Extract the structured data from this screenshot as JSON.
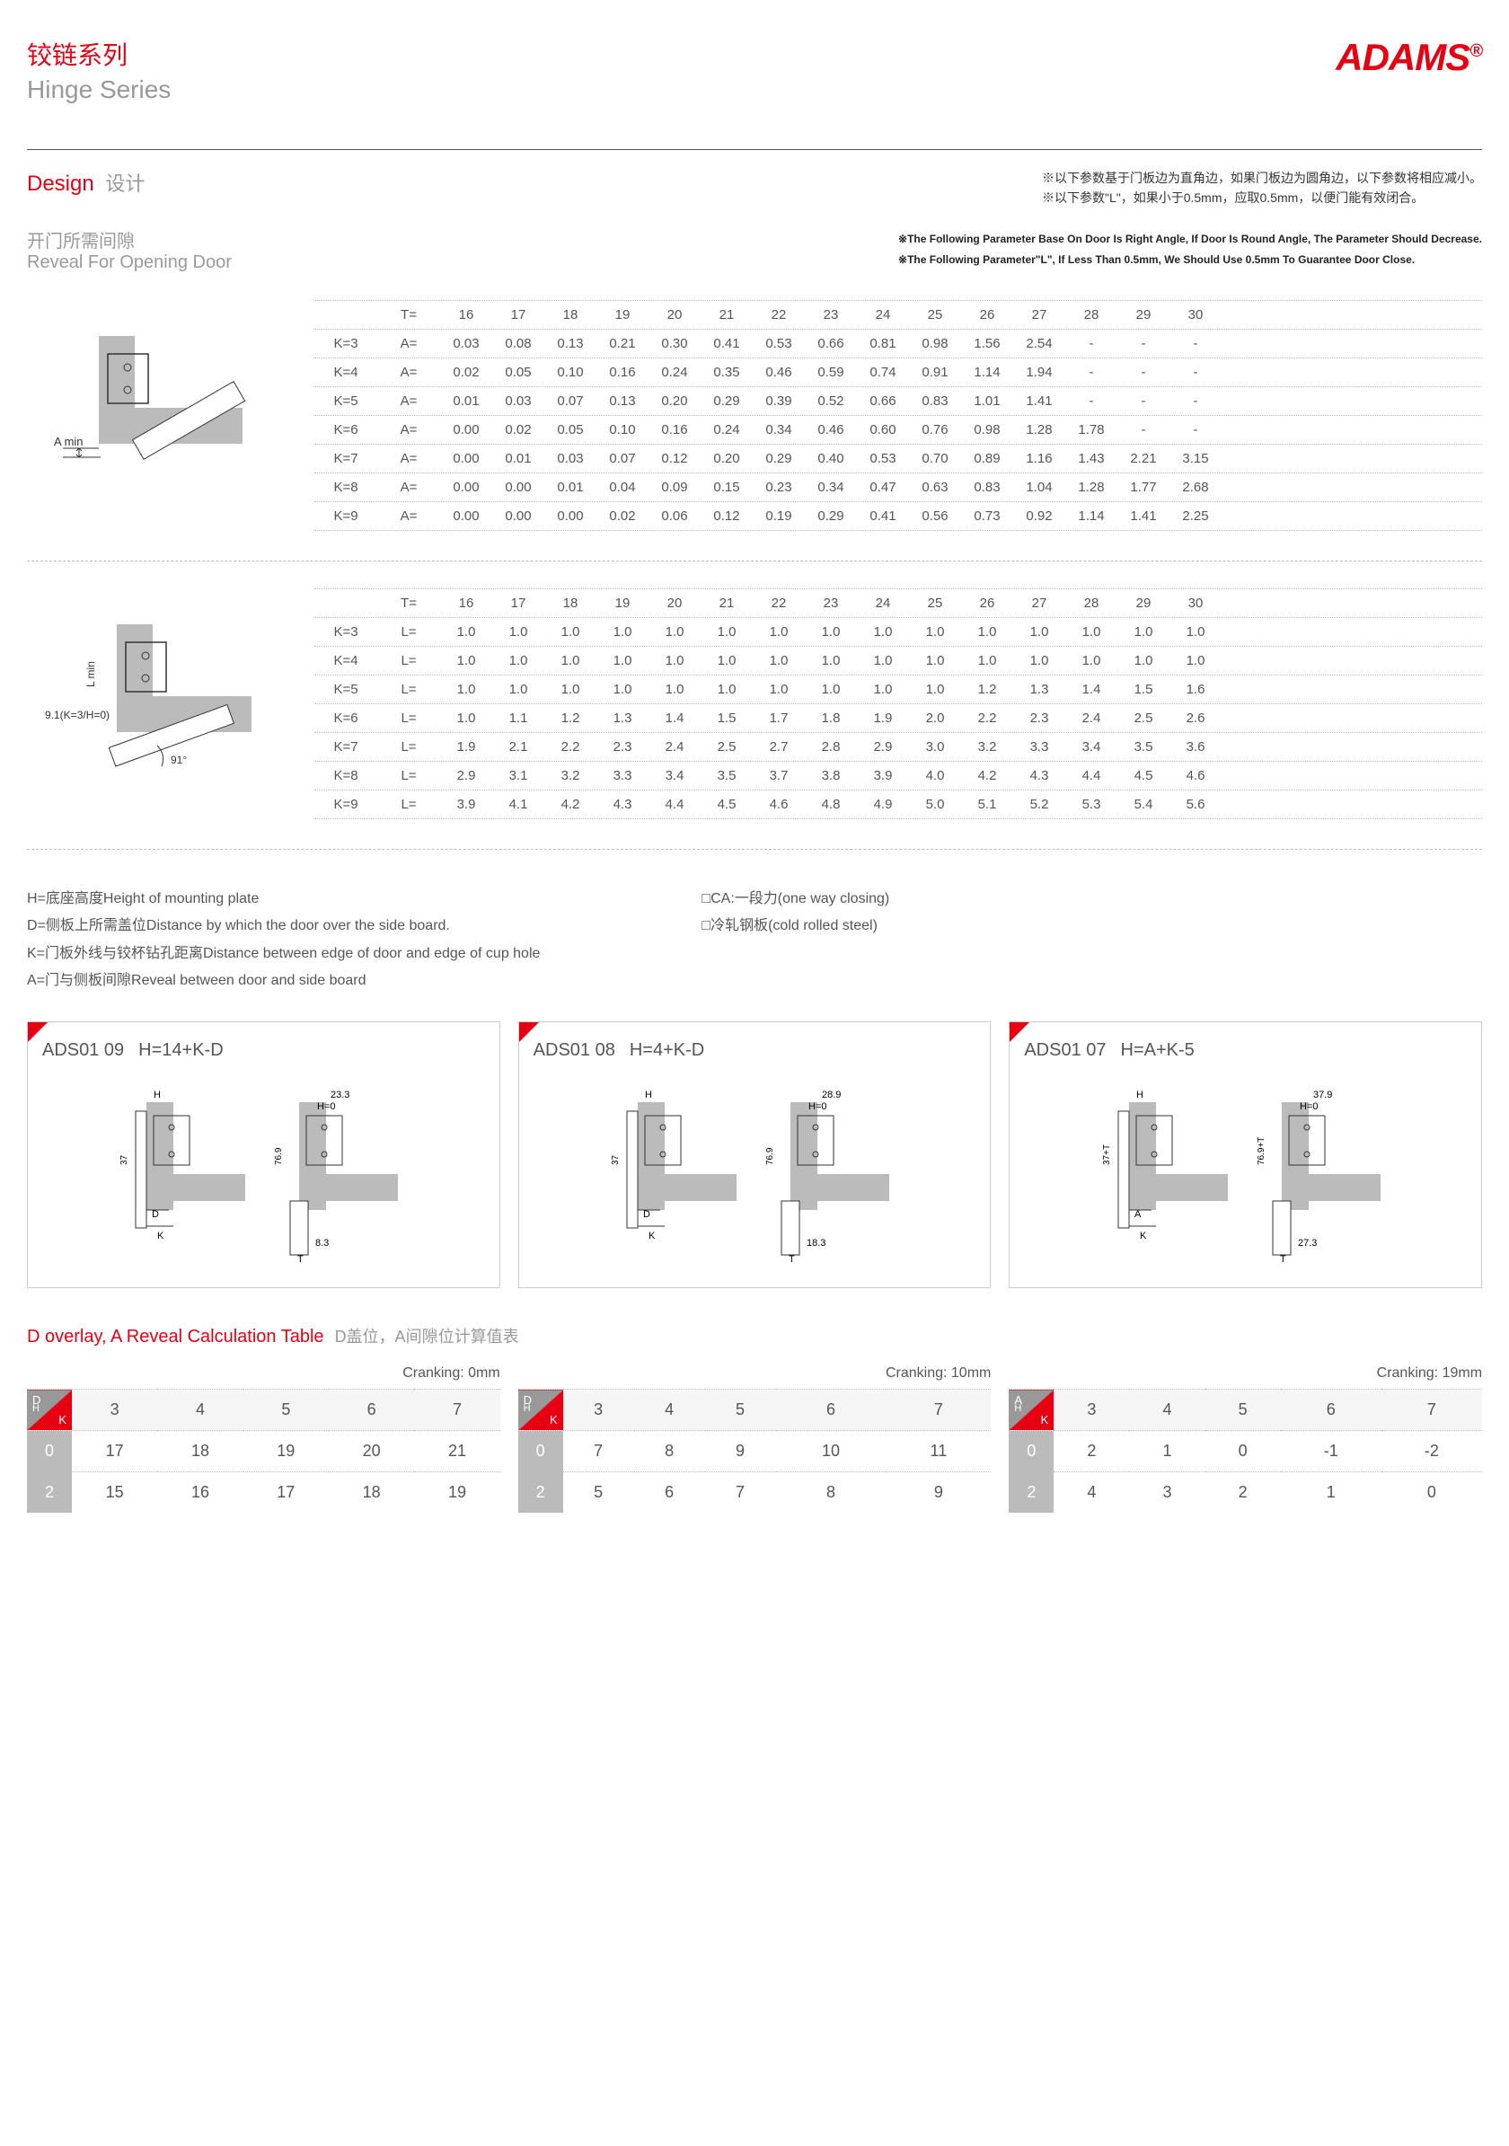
{
  "header": {
    "title_cn": "铰链系列",
    "title_en": "Hinge Series",
    "brand": "ADAMS"
  },
  "design": {
    "label_en": "Design",
    "label_cn": "设计",
    "note_cn1": "※以下参数基于门板边为直角边，如果门板边为圆角边，以下参数将相应减小。",
    "note_cn2": "※以下参数\"L\"，如果小于0.5mm，应取0.5mm，以便门能有效闭合。",
    "note_en1": "※The Following Parameter Base On Door Is Right Angle, If Door Is Round Angle, The Parameter Should Decrease.",
    "note_en2": "※The Following Parameter\"L\", If Less Than 0.5mm, We Should Use 0.5mm To Guarantee Door Close."
  },
  "subtitle": {
    "cn": "开门所需间隙",
    "en": "Reveal For Opening Door"
  },
  "diagram1": {
    "label": "A min"
  },
  "diagram2": {
    "label1": "L min",
    "label2": "9.1(K=3/H=0)",
    "label3": "91°"
  },
  "tcols": [
    "16",
    "17",
    "18",
    "19",
    "20",
    "21",
    "22",
    "23",
    "24",
    "25",
    "26",
    "27",
    "28",
    "29",
    "30"
  ],
  "tableA": {
    "T": "T=",
    "Acol": "A=",
    "rows": [
      {
        "k": "K=3",
        "v": [
          "0.03",
          "0.08",
          "0.13",
          "0.21",
          "0.30",
          "0.41",
          "0.53",
          "0.66",
          "0.81",
          "0.98",
          "1.56",
          "2.54",
          "-",
          "-",
          "-"
        ]
      },
      {
        "k": "K=4",
        "v": [
          "0.02",
          "0.05",
          "0.10",
          "0.16",
          "0.24",
          "0.35",
          "0.46",
          "0.59",
          "0.74",
          "0.91",
          "1.14",
          "1.94",
          "-",
          "-",
          "-"
        ]
      },
      {
        "k": "K=5",
        "v": [
          "0.01",
          "0.03",
          "0.07",
          "0.13",
          "0.20",
          "0.29",
          "0.39",
          "0.52",
          "0.66",
          "0.83",
          "1.01",
          "1.41",
          "-",
          "-",
          "-"
        ]
      },
      {
        "k": "K=6",
        "v": [
          "0.00",
          "0.02",
          "0.05",
          "0.10",
          "0.16",
          "0.24",
          "0.34",
          "0.46",
          "0.60",
          "0.76",
          "0.98",
          "1.28",
          "1.78",
          "-",
          "-"
        ]
      },
      {
        "k": "K=7",
        "v": [
          "0.00",
          "0.01",
          "0.03",
          "0.07",
          "0.12",
          "0.20",
          "0.29",
          "0.40",
          "0.53",
          "0.70",
          "0.89",
          "1.16",
          "1.43",
          "2.21",
          "3.15"
        ]
      },
      {
        "k": "K=8",
        "v": [
          "0.00",
          "0.00",
          "0.01",
          "0.04",
          "0.09",
          "0.15",
          "0.23",
          "0.34",
          "0.47",
          "0.63",
          "0.83",
          "1.04",
          "1.28",
          "1.77",
          "2.68"
        ]
      },
      {
        "k": "K=9",
        "v": [
          "0.00",
          "0.00",
          "0.00",
          "0.02",
          "0.06",
          "0.12",
          "0.19",
          "0.29",
          "0.41",
          "0.56",
          "0.73",
          "0.92",
          "1.14",
          "1.41",
          "2.25"
        ]
      }
    ]
  },
  "tableL": {
    "T": "T=",
    "Lcol": "L=",
    "rows": [
      {
        "k": "K=3",
        "v": [
          "1.0",
          "1.0",
          "1.0",
          "1.0",
          "1.0",
          "1.0",
          "1.0",
          "1.0",
          "1.0",
          "1.0",
          "1.0",
          "1.0",
          "1.0",
          "1.0",
          "1.0"
        ]
      },
      {
        "k": "K=4",
        "v": [
          "1.0",
          "1.0",
          "1.0",
          "1.0",
          "1.0",
          "1.0",
          "1.0",
          "1.0",
          "1.0",
          "1.0",
          "1.0",
          "1.0",
          "1.0",
          "1.0",
          "1.0"
        ]
      },
      {
        "k": "K=5",
        "v": [
          "1.0",
          "1.0",
          "1.0",
          "1.0",
          "1.0",
          "1.0",
          "1.0",
          "1.0",
          "1.0",
          "1.0",
          "1.2",
          "1.3",
          "1.4",
          "1.5",
          "1.6"
        ]
      },
      {
        "k": "K=6",
        "v": [
          "1.0",
          "1.1",
          "1.2",
          "1.3",
          "1.4",
          "1.5",
          "1.7",
          "1.8",
          "1.9",
          "2.0",
          "2.2",
          "2.3",
          "2.4",
          "2.5",
          "2.6"
        ]
      },
      {
        "k": "K=7",
        "v": [
          "1.9",
          "2.1",
          "2.2",
          "2.3",
          "2.4",
          "2.5",
          "2.7",
          "2.8",
          "2.9",
          "3.0",
          "3.2",
          "3.3",
          "3.4",
          "3.5",
          "3.6"
        ]
      },
      {
        "k": "K=8",
        "v": [
          "2.9",
          "3.1",
          "3.2",
          "3.3",
          "3.4",
          "3.5",
          "3.7",
          "3.8",
          "3.9",
          "4.0",
          "4.2",
          "4.3",
          "4.4",
          "4.5",
          "4.6"
        ]
      },
      {
        "k": "K=9",
        "v": [
          "3.9",
          "4.1",
          "4.2",
          "4.3",
          "4.4",
          "4.5",
          "4.6",
          "4.8",
          "4.9",
          "5.0",
          "5.1",
          "5.2",
          "5.3",
          "5.4",
          "5.6"
        ]
      }
    ]
  },
  "legend": {
    "left": [
      "H=底座高度Height of mounting plate",
      "D=侧板上所需盖位Distance by which the door over the side board.",
      "K=门板外线与铰杯钻孔距离Distance between edge of door and edge of cup hole",
      "A=门与侧板间隙Reveal between door and side board"
    ],
    "right": [
      "□CA:一段力(one way closing)",
      "□冷轧钢板(cold rolled steel)"
    ]
  },
  "cards": [
    {
      "code": "ADS01 09",
      "formula": "H=14+K-D",
      "d1": {
        "h": "H",
        "d": "D",
        "k": "K",
        "v37": "37"
      },
      "d2": {
        "h0": "H=0",
        "w": "23.3",
        "h769": "76.9",
        "t": "T",
        "b": "8.3"
      }
    },
    {
      "code": "ADS01 08",
      "formula": "H=4+K-D",
      "d1": {
        "h": "H",
        "d": "D",
        "k": "K",
        "v37": "37"
      },
      "d2": {
        "h0": "H=0",
        "w": "28.9",
        "h769": "76.9",
        "t": "T",
        "b": "18.3"
      }
    },
    {
      "code": "ADS01 07",
      "formula": "H=A+K-5",
      "d1": {
        "h": "H",
        "d": "A",
        "k": "K",
        "v37": "37+T"
      },
      "d2": {
        "h0": "H=0",
        "w": "37.9",
        "h769": "76.9+T",
        "t": "T",
        "b": "27.3"
      }
    }
  ],
  "calc": {
    "title_en": "D overlay, A Reveal Calculation Table",
    "title_cn": "D盖位，A间隙位计算值表",
    "tables": [
      {
        "crank": "Cranking: 0mm",
        "corner_t": "D",
        "corner_b": "K",
        "corner_m": "H",
        "cols": [
          "3",
          "4",
          "5",
          "6",
          "7"
        ],
        "rows": [
          {
            "h": "0",
            "v": [
              "17",
              "18",
              "19",
              "20",
              "21"
            ]
          },
          {
            "h": "2",
            "v": [
              "15",
              "16",
              "17",
              "18",
              "19"
            ]
          }
        ]
      },
      {
        "crank": "Cranking: 10mm",
        "corner_t": "D",
        "corner_b": "K",
        "corner_m": "H",
        "cols": [
          "3",
          "4",
          "5",
          "6",
          "7"
        ],
        "rows": [
          {
            "h": "0",
            "v": [
              "7",
              "8",
              "9",
              "10",
              "11"
            ]
          },
          {
            "h": "2",
            "v": [
              "5",
              "6",
              "7",
              "8",
              "9"
            ]
          }
        ]
      },
      {
        "crank": "Cranking: 19mm",
        "corner_t": "A",
        "corner_b": "K",
        "corner_m": "H",
        "cols": [
          "3",
          "4",
          "5",
          "6",
          "7"
        ],
        "rows": [
          {
            "h": "0",
            "v": [
              "2",
              "1",
              "0",
              "-1",
              "-2"
            ]
          },
          {
            "h": "2",
            "v": [
              "4",
              "3",
              "2",
              "1",
              "0"
            ]
          }
        ]
      }
    ]
  }
}
